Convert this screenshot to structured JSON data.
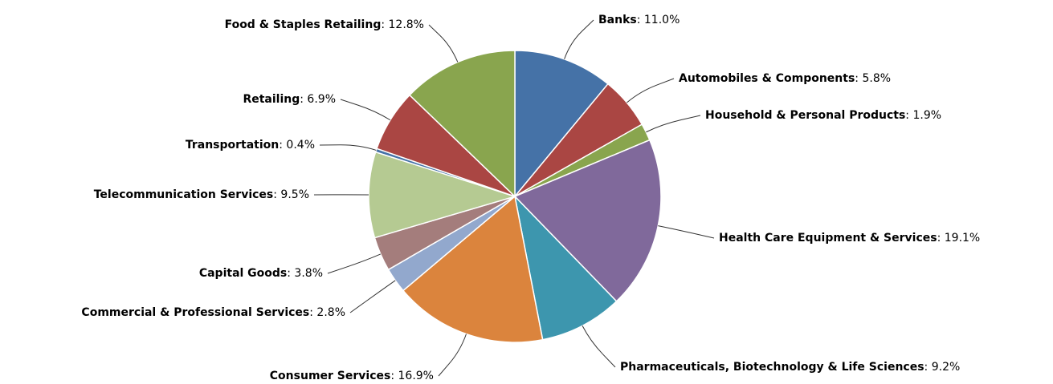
{
  "chart_data": {
    "type": "pie",
    "categories": [
      "Banks",
      "Automobiles & Components",
      "Household & Personal Products",
      "Health Care Equipment & Services",
      "Pharmaceuticals, Biotechnology & Life Sciences",
      "Consumer Services",
      "Commercial & Professional Services",
      "Capital Goods",
      "Telecommunication Services",
      "Transportation",
      "Retailing",
      "Food & Staples Retailing"
    ],
    "values": [
      11.0,
      5.8,
      1.9,
      19.1,
      9.2,
      16.9,
      2.8,
      3.8,
      9.5,
      0.4,
      6.9,
      12.8
    ],
    "value_labels": [
      ": 11.0%",
      ": 5.8%",
      ": 1.9%",
      ": 19.1%",
      ": 9.2%",
      ": 16.9%",
      ": 2.8%",
      ": 3.8%",
      ": 9.5%",
      ": 0.4%",
      ": 6.9%",
      ": 12.8%"
    ],
    "colors": [
      "#4572a7",
      "#aa4643",
      "#89a54e",
      "#80699b",
      "#3d96ae",
      "#db843d",
      "#92a8cd",
      "#a47d7c",
      "#b5ca92",
      "#4572a7",
      "#aa4643",
      "#89a54e"
    ]
  }
}
